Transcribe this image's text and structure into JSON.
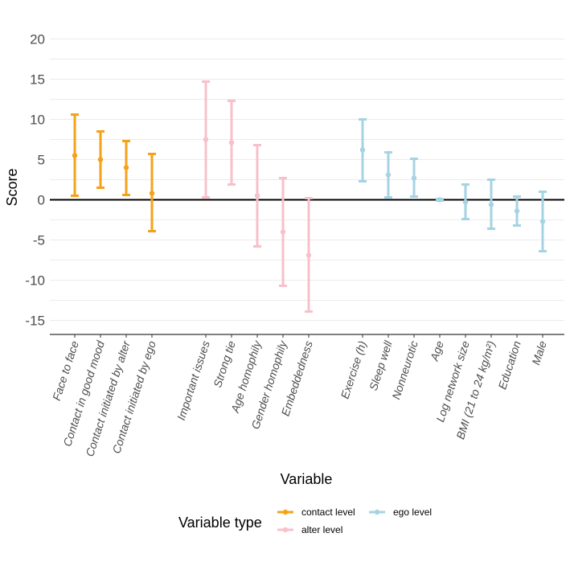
{
  "chart_data": {
    "type": "errorbar",
    "title": "",
    "xlabel": "Variable",
    "ylabel": "Score",
    "ylim": [
      -16.5,
      20.5
    ],
    "yticks": [
      -15,
      -10,
      -5,
      0,
      5,
      10,
      15,
      20
    ],
    "grid": true,
    "legend": {
      "title": "Variable type",
      "placement": "bottom",
      "entries": [
        {
          "key": "contact",
          "label": "contact level",
          "color": "#f5a21b"
        },
        {
          "key": "alter",
          "label": "alter level",
          "color": "#f7c0cb"
        },
        {
          "key": "ego",
          "label": "ego level",
          "color": "#a6d3e3"
        }
      ]
    },
    "groups": [
      {
        "type": "contact",
        "items": [
          {
            "label": "Face to face",
            "estimate": 5.5,
            "lower": 0.5,
            "upper": 10.6
          },
          {
            "label": "Contact in good mood",
            "estimate": 5.0,
            "lower": 1.5,
            "upper": 8.5
          },
          {
            "label": "Contact initiated by alter",
            "estimate": 4.0,
            "lower": 0.6,
            "upper": 7.3
          },
          {
            "label": "Contact initiated by ego",
            "estimate": 0.8,
            "lower": -3.9,
            "upper": 5.7
          }
        ]
      },
      {
        "type": "alter",
        "items": [
          {
            "label": "Important issues",
            "estimate": 7.5,
            "lower": 0.3,
            "upper": 14.7
          },
          {
            "label": "Strong tie",
            "estimate": 7.1,
            "lower": 1.9,
            "upper": 12.3
          },
          {
            "label": "Age homophily",
            "estimate": 0.5,
            "lower": -5.8,
            "upper": 6.8
          },
          {
            "label": "Gender homophily",
            "estimate": -4.0,
            "lower": -10.7,
            "upper": 2.7
          },
          {
            "label": "Embeddedness",
            "estimate": -6.9,
            "lower": -13.9,
            "upper": 0.2
          }
        ]
      },
      {
        "type": "ego",
        "items": [
          {
            "label": "Exercise (h)",
            "estimate": 6.2,
            "lower": 2.3,
            "upper": 10.0
          },
          {
            "label": "Sleep well",
            "estimate": 3.1,
            "lower": 0.3,
            "upper": 5.9
          },
          {
            "label": "Nonneurotic",
            "estimate": 2.7,
            "lower": 0.4,
            "upper": 5.1
          },
          {
            "label": "Age",
            "estimate": 0.0,
            "lower": -0.1,
            "upper": 0.1
          },
          {
            "label": "Log network size",
            "estimate": -0.3,
            "lower": -2.4,
            "upper": 1.9
          },
          {
            "label": "BMI (21 to 24 kg/m²)",
            "estimate": -0.6,
            "lower": -3.6,
            "upper": 2.5
          },
          {
            "label": "Education",
            "estimate": -1.4,
            "lower": -3.2,
            "upper": 0.4
          },
          {
            "label": "Male",
            "estimate": -2.7,
            "lower": -6.4,
            "upper": 1.0
          }
        ]
      }
    ]
  }
}
